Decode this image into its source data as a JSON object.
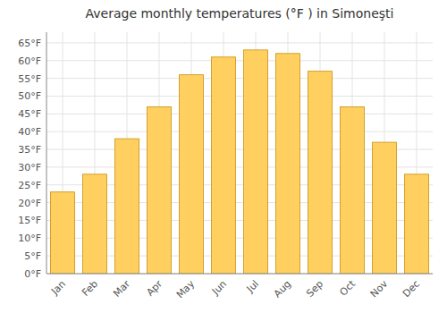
{
  "chart_data": {
    "type": "bar",
    "title": "Average monthly temperatures (°F ) in Simoneşti",
    "categories": [
      "Jan",
      "Feb",
      "Mar",
      "Apr",
      "May",
      "Jun",
      "Jul",
      "Aug",
      "Sep",
      "Oct",
      "Nov",
      "Dec"
    ],
    "values": [
      23,
      28,
      38,
      47,
      56,
      61,
      63,
      62,
      57,
      47,
      37,
      28
    ],
    "color": "#FFD060",
    "ylim": [
      0,
      68
    ],
    "yticks": [
      {
        "value": 0,
        "label": "0°F"
      },
      {
        "value": 5,
        "label": "5°F"
      },
      {
        "value": 10,
        "label": "10°F"
      },
      {
        "value": 15,
        "label": "15°F"
      },
      {
        "value": 20,
        "label": "20°F"
      },
      {
        "value": 25,
        "label": "25°F"
      },
      {
        "value": 30,
        "label": "30°F"
      },
      {
        "value": 35,
        "label": "35°F"
      },
      {
        "value": 40,
        "label": "40°F"
      },
      {
        "value": 45,
        "label": "45°F"
      },
      {
        "value": 50,
        "label": "50°F"
      },
      {
        "value": 55,
        "label": "55°F"
      },
      {
        "value": 60,
        "label": "60°F"
      },
      {
        "value": 65,
        "label": "65°F"
      }
    ],
    "grid": true
  }
}
